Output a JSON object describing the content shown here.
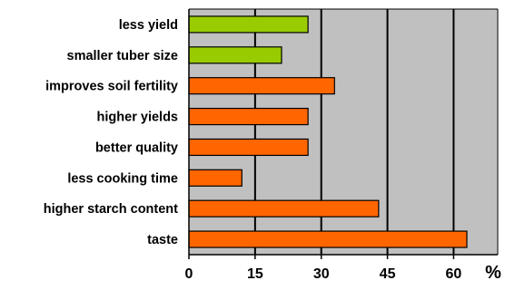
{
  "chart_data": {
    "type": "bar",
    "orientation": "horizontal",
    "categories": [
      "less yield",
      "smaller tuber size",
      "improves soil fertility",
      "higher yields",
      "better quality",
      "less cooking time",
      "higher starch content",
      "taste"
    ],
    "values": [
      27,
      21,
      33,
      27,
      27,
      12,
      43,
      63
    ],
    "bar_colors": [
      "#99cc00",
      "#99cc00",
      "#ff6600",
      "#ff6600",
      "#ff6600",
      "#ff6600",
      "#ff6600",
      "#ff6600"
    ],
    "xlim": [
      0,
      70
    ],
    "xticks": [
      0,
      15,
      30,
      45,
      60
    ],
    "xtick_labels": [
      "0",
      "15",
      "30",
      "45",
      "60"
    ],
    "xlabel": "%",
    "grid": true,
    "plot_background": "#c0c0c0"
  }
}
